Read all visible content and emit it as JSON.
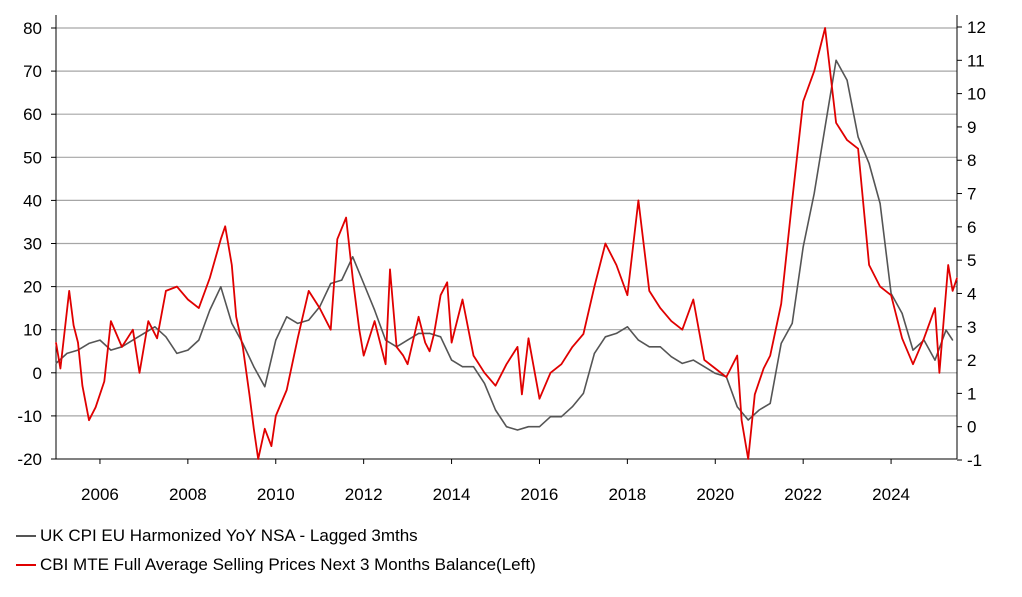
{
  "chart_data": {
    "type": "line",
    "title": "",
    "xlabel": "",
    "ylabel": "",
    "x_range": [
      2005.0,
      2025.5
    ],
    "x_ticks": [
      "2006",
      "2008",
      "2010",
      "2012",
      "2014",
      "2016",
      "2018",
      "2020",
      "2022",
      "2024"
    ],
    "x_tick_values": [
      2006,
      2008,
      2010,
      2012,
      2014,
      2016,
      2018,
      2020,
      2022,
      2024
    ],
    "left_axis": {
      "range": [
        -20,
        80
      ],
      "ticks": [
        "-20",
        "-10",
        "0",
        "10",
        "20",
        "30",
        "40",
        "50",
        "60",
        "70",
        "80"
      ]
    },
    "right_axis": {
      "range": [
        -1,
        12
      ],
      "ticks": [
        "-1",
        "0",
        "1",
        "2",
        "3",
        "4",
        "5",
        "6",
        "7",
        "8",
        "9",
        "10",
        "11",
        "12"
      ]
    },
    "grid": "horizontal",
    "legend_position": "bottom-left",
    "series": [
      {
        "name": "UK CPI EU Harmonized YoY NSA - Lagged 3mths",
        "axis": "right",
        "color": "#555555",
        "points": [
          [
            2005.0,
            1.9
          ],
          [
            2005.25,
            2.2
          ],
          [
            2005.5,
            2.3
          ],
          [
            2005.75,
            2.5
          ],
          [
            2006.0,
            2.6
          ],
          [
            2006.25,
            2.3
          ],
          [
            2006.5,
            2.4
          ],
          [
            2006.75,
            2.6
          ],
          [
            2007.0,
            2.8
          ],
          [
            2007.25,
            3.0
          ],
          [
            2007.5,
            2.7
          ],
          [
            2007.75,
            2.2
          ],
          [
            2008.0,
            2.3
          ],
          [
            2008.25,
            2.6
          ],
          [
            2008.5,
            3.5
          ],
          [
            2008.75,
            4.2
          ],
          [
            2009.0,
            3.1
          ],
          [
            2009.25,
            2.5
          ],
          [
            2009.5,
            1.8
          ],
          [
            2009.75,
            1.2
          ],
          [
            2010.0,
            2.6
          ],
          [
            2010.25,
            3.3
          ],
          [
            2010.5,
            3.1
          ],
          [
            2010.75,
            3.2
          ],
          [
            2011.0,
            3.6
          ],
          [
            2011.25,
            4.3
          ],
          [
            2011.5,
            4.4
          ],
          [
            2011.75,
            5.1
          ],
          [
            2012.0,
            4.3
          ],
          [
            2012.25,
            3.5
          ],
          [
            2012.5,
            2.6
          ],
          [
            2012.75,
            2.4
          ],
          [
            2013.0,
            2.6
          ],
          [
            2013.25,
            2.8
          ],
          [
            2013.5,
            2.8
          ],
          [
            2013.75,
            2.7
          ],
          [
            2014.0,
            2.0
          ],
          [
            2014.25,
            1.8
          ],
          [
            2014.5,
            1.8
          ],
          [
            2014.75,
            1.3
          ],
          [
            2015.0,
            0.5
          ],
          [
            2015.25,
            0.0
          ],
          [
            2015.5,
            -0.1
          ],
          [
            2015.75,
            0.0
          ],
          [
            2016.0,
            0.0
          ],
          [
            2016.25,
            0.3
          ],
          [
            2016.5,
            0.3
          ],
          [
            2016.75,
            0.6
          ],
          [
            2017.0,
            1.0
          ],
          [
            2017.25,
            2.2
          ],
          [
            2017.5,
            2.7
          ],
          [
            2017.75,
            2.8
          ],
          [
            2018.0,
            3.0
          ],
          [
            2018.25,
            2.6
          ],
          [
            2018.5,
            2.4
          ],
          [
            2018.75,
            2.4
          ],
          [
            2019.0,
            2.1
          ],
          [
            2019.25,
            1.9
          ],
          [
            2019.5,
            2.0
          ],
          [
            2019.75,
            1.8
          ],
          [
            2020.0,
            1.6
          ],
          [
            2020.25,
            1.5
          ],
          [
            2020.5,
            0.6
          ],
          [
            2020.75,
            0.2
          ],
          [
            2021.0,
            0.5
          ],
          [
            2021.25,
            0.7
          ],
          [
            2021.5,
            2.5
          ],
          [
            2021.75,
            3.1
          ],
          [
            2022.0,
            5.4
          ],
          [
            2022.25,
            7.0
          ],
          [
            2022.5,
            9.0
          ],
          [
            2022.75,
            11.0
          ],
          [
            2023.0,
            10.4
          ],
          [
            2023.25,
            8.7
          ],
          [
            2023.5,
            7.9
          ],
          [
            2023.75,
            6.7
          ],
          [
            2024.0,
            4.0
          ],
          [
            2024.25,
            3.4
          ],
          [
            2024.5,
            2.3
          ],
          [
            2024.75,
            2.6
          ],
          [
            2025.0,
            2.0
          ],
          [
            2025.25,
            2.9
          ],
          [
            2025.4,
            2.6
          ]
        ]
      },
      {
        "name": "CBI MTE Full Average Selling Prices Next 3 Months Balance(Left)",
        "axis": "left",
        "color": "#e00000",
        "points": [
          [
            2005.0,
            7
          ],
          [
            2005.1,
            1
          ],
          [
            2005.2,
            10
          ],
          [
            2005.3,
            19
          ],
          [
            2005.4,
            11
          ],
          [
            2005.5,
            7
          ],
          [
            2005.6,
            -3
          ],
          [
            2005.75,
            -11
          ],
          [
            2005.9,
            -8
          ],
          [
            2006.1,
            -2
          ],
          [
            2006.25,
            12
          ],
          [
            2006.5,
            6
          ],
          [
            2006.75,
            10
          ],
          [
            2006.9,
            0
          ],
          [
            2007.1,
            12
          ],
          [
            2007.3,
            8
          ],
          [
            2007.5,
            19
          ],
          [
            2007.75,
            20
          ],
          [
            2008.0,
            17
          ],
          [
            2008.25,
            15
          ],
          [
            2008.5,
            22
          ],
          [
            2008.75,
            31
          ],
          [
            2008.85,
            34
          ],
          [
            2009.0,
            25
          ],
          [
            2009.1,
            13
          ],
          [
            2009.25,
            6
          ],
          [
            2009.4,
            -5
          ],
          [
            2009.5,
            -13
          ],
          [
            2009.6,
            -20
          ],
          [
            2009.75,
            -13
          ],
          [
            2009.9,
            -17
          ],
          [
            2010.0,
            -10
          ],
          [
            2010.25,
            -4
          ],
          [
            2010.5,
            8
          ],
          [
            2010.75,
            19
          ],
          [
            2011.0,
            15
          ],
          [
            2011.25,
            10
          ],
          [
            2011.4,
            31
          ],
          [
            2011.6,
            36
          ],
          [
            2011.75,
            22
          ],
          [
            2011.9,
            10
          ],
          [
            2012.0,
            4
          ],
          [
            2012.25,
            12
          ],
          [
            2012.5,
            2
          ],
          [
            2012.6,
            24
          ],
          [
            2012.75,
            6
          ],
          [
            2012.9,
            4
          ],
          [
            2013.0,
            2
          ],
          [
            2013.25,
            13
          ],
          [
            2013.4,
            7
          ],
          [
            2013.5,
            5
          ],
          [
            2013.6,
            9
          ],
          [
            2013.75,
            18
          ],
          [
            2013.9,
            21
          ],
          [
            2014.0,
            7
          ],
          [
            2014.25,
            17
          ],
          [
            2014.5,
            4
          ],
          [
            2014.75,
            0
          ],
          [
            2015.0,
            -3
          ],
          [
            2015.25,
            2
          ],
          [
            2015.5,
            6
          ],
          [
            2015.6,
            -5
          ],
          [
            2015.75,
            8
          ],
          [
            2016.0,
            -6
          ],
          [
            2016.25,
            0
          ],
          [
            2016.5,
            2
          ],
          [
            2016.75,
            6
          ],
          [
            2017.0,
            9
          ],
          [
            2017.25,
            20
          ],
          [
            2017.5,
            30
          ],
          [
            2017.75,
            25
          ],
          [
            2018.0,
            18
          ],
          [
            2018.25,
            40
          ],
          [
            2018.5,
            19
          ],
          [
            2018.75,
            15
          ],
          [
            2019.0,
            12
          ],
          [
            2019.25,
            10
          ],
          [
            2019.5,
            17
          ],
          [
            2019.75,
            3
          ],
          [
            2020.0,
            1
          ],
          [
            2020.25,
            -1
          ],
          [
            2020.5,
            4
          ],
          [
            2020.6,
            -11
          ],
          [
            2020.75,
            -20
          ],
          [
            2020.9,
            -5
          ],
          [
            2021.1,
            1
          ],
          [
            2021.25,
            4
          ],
          [
            2021.5,
            16
          ],
          [
            2021.75,
            40
          ],
          [
            2022.0,
            63
          ],
          [
            2022.25,
            70
          ],
          [
            2022.5,
            80
          ],
          [
            2022.75,
            58
          ],
          [
            2023.0,
            54
          ],
          [
            2023.25,
            52
          ],
          [
            2023.5,
            25
          ],
          [
            2023.75,
            20
          ],
          [
            2024.0,
            18
          ],
          [
            2024.25,
            8
          ],
          [
            2024.5,
            2
          ],
          [
            2024.75,
            8
          ],
          [
            2025.0,
            15
          ],
          [
            2025.1,
            0
          ],
          [
            2025.3,
            25
          ],
          [
            2025.4,
            19
          ],
          [
            2025.5,
            22
          ]
        ]
      }
    ]
  }
}
